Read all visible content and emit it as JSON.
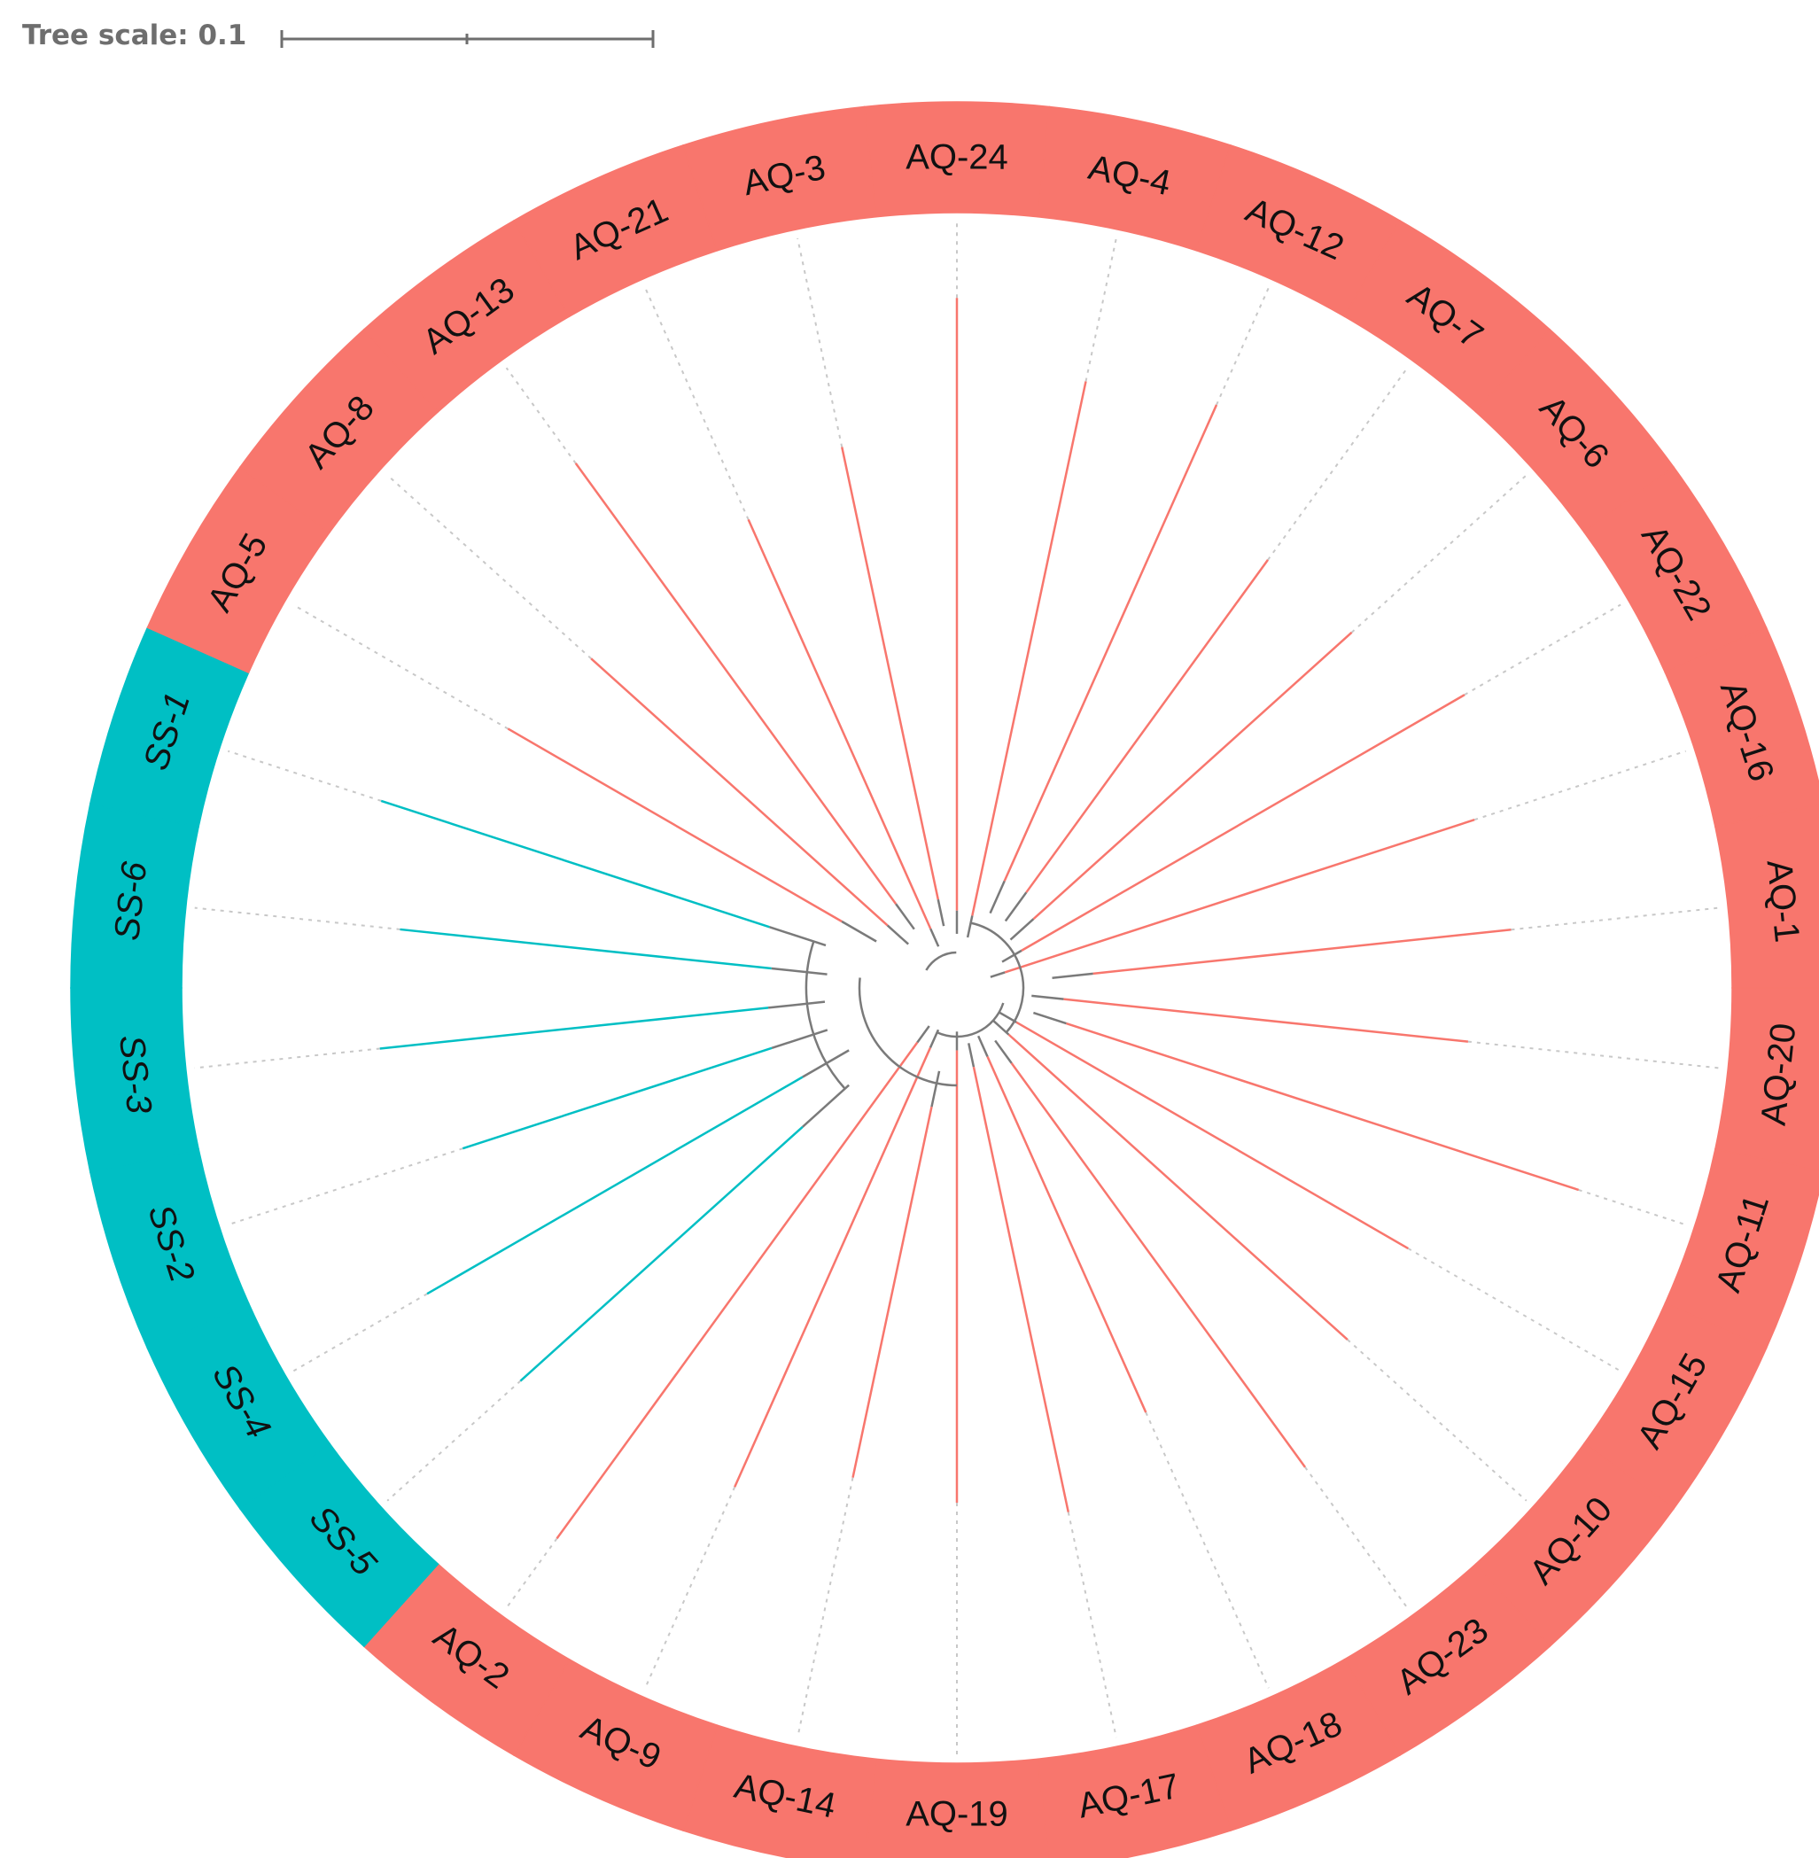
{
  "scale": {
    "label": "Tree scale: 0.1"
  },
  "tree": {
    "colors": {
      "AQ": "#f8766d",
      "SS": "#00bfc4",
      "inner": "#7a7a7a",
      "dotted": "#c8c8c8"
    },
    "leaves": [
      {
        "id": "AQ-24",
        "group": "AQ"
      },
      {
        "id": "AQ-4",
        "group": "AQ"
      },
      {
        "id": "AQ-12",
        "group": "AQ"
      },
      {
        "id": "AQ-7",
        "group": "AQ"
      },
      {
        "id": "AQ-6",
        "group": "AQ"
      },
      {
        "id": "AQ-22",
        "group": "AQ"
      },
      {
        "id": "AQ-16",
        "group": "AQ"
      },
      {
        "id": "AQ-1",
        "group": "AQ"
      },
      {
        "id": "AQ-20",
        "group": "AQ"
      },
      {
        "id": "AQ-11",
        "group": "AQ"
      },
      {
        "id": "AQ-15",
        "group": "AQ"
      },
      {
        "id": "AQ-10",
        "group": "AQ"
      },
      {
        "id": "AQ-23",
        "group": "AQ"
      },
      {
        "id": "AQ-18",
        "group": "AQ"
      },
      {
        "id": "AQ-17",
        "group": "AQ"
      },
      {
        "id": "AQ-19",
        "group": "AQ"
      },
      {
        "id": "AQ-14",
        "group": "AQ"
      },
      {
        "id": "AQ-9",
        "group": "AQ"
      },
      {
        "id": "AQ-2",
        "group": "AQ"
      },
      {
        "id": "SS-5",
        "group": "SS"
      },
      {
        "id": "SS-4",
        "group": "SS"
      },
      {
        "id": "SS-2",
        "group": "SS"
      },
      {
        "id": "SS-3",
        "group": "SS"
      },
      {
        "id": "SS-6",
        "group": "SS"
      },
      {
        "id": "SS-1",
        "group": "SS"
      },
      {
        "id": "AQ-5",
        "group": "AQ"
      },
      {
        "id": "AQ-8",
        "group": "AQ"
      },
      {
        "id": "AQ-13",
        "group": "AQ"
      },
      {
        "id": "AQ-21",
        "group": "AQ"
      },
      {
        "id": "AQ-3",
        "group": "AQ"
      }
    ]
  }
}
